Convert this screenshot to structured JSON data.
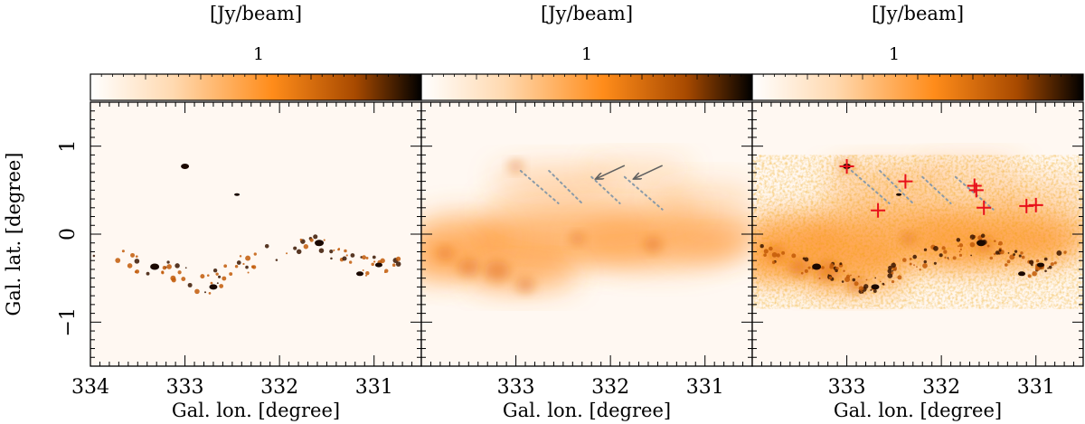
{
  "chart_data": {
    "type": "heatmap",
    "ylabel": "Gal. lat. [degree]",
    "xlabel": "Gal. lon. [degree]",
    "xlim": [
      334,
      330.5
    ],
    "ylim": [
      -1.5,
      1.5
    ],
    "xticks": [
      334,
      333,
      332,
      331
    ],
    "yticks": [
      -1,
      0,
      1
    ],
    "colormap": [
      "#ffffff",
      "#ffd9b0",
      "#ff8c1a",
      "#a84a00",
      "#000000"
    ],
    "panels": [
      {
        "colorbar_unit": "[Jy/beam]",
        "colorbar_tick": "1",
        "x_tick_labels": [
          "334",
          "333",
          "332",
          "331"
        ],
        "y_tick_labels": [
          "−1",
          "0",
          "1"
        ],
        "show_ylabel": true,
        "emission": "compact",
        "arrows": [],
        "dotted_lines": [],
        "markers": []
      },
      {
        "colorbar_unit": "[Jy/beam]",
        "colorbar_tick": "1",
        "x_tick_labels": [
          "333",
          "332",
          "331"
        ],
        "y_tick_labels": [],
        "show_ylabel": false,
        "emission": "diffuse",
        "arrows": [
          {
            "from": [
              331.85,
              0.78
            ],
            "to": [
              332.15,
              0.63
            ]
          },
          {
            "from": [
              331.45,
              0.78
            ],
            "to": [
              331.75,
              0.63
            ]
          }
        ],
        "dotted_lines": [
          {
            "from": [
              332.95,
              0.72
            ],
            "to": [
              332.55,
              0.35
            ]
          },
          {
            "from": [
              332.65,
              0.72
            ],
            "to": [
              332.3,
              0.35
            ]
          },
          {
            "from": [
              332.2,
              0.65
            ],
            "to": [
              331.9,
              0.35
            ]
          },
          {
            "from": [
              331.85,
              0.65
            ],
            "to": [
              331.45,
              0.28
            ]
          }
        ],
        "markers": []
      },
      {
        "colorbar_unit": "[Jy/beam]",
        "colorbar_tick": "1",
        "x_tick_labels": [
          "333",
          "332",
          "331"
        ],
        "y_tick_labels": [],
        "show_ylabel": false,
        "emission": "combined",
        "arrows": [],
        "dotted_lines": [
          {
            "from": [
              332.95,
              0.72
            ],
            "to": [
              332.55,
              0.35
            ]
          },
          {
            "from": [
              332.65,
              0.72
            ],
            "to": [
              332.3,
              0.35
            ]
          },
          {
            "from": [
              332.2,
              0.65
            ],
            "to": [
              331.9,
              0.35
            ]
          },
          {
            "from": [
              331.85,
              0.65
            ],
            "to": [
              331.45,
              0.28
            ]
          }
        ],
        "markers": [
          {
            "lon": 333.0,
            "lat": 0.77
          },
          {
            "lon": 332.67,
            "lat": 0.27
          },
          {
            "lon": 332.38,
            "lat": 0.6
          },
          {
            "lon": 331.65,
            "lat": 0.55
          },
          {
            "lon": 331.63,
            "lat": 0.5
          },
          {
            "lon": 331.55,
            "lat": 0.3
          },
          {
            "lon": 331.1,
            "lat": 0.32
          },
          {
            "lon": 331.0,
            "lat": 0.33
          }
        ]
      }
    ]
  },
  "colors": {
    "marker": "#e8101a",
    "arrow": "#606060",
    "dotted": "#8a9aa8"
  }
}
